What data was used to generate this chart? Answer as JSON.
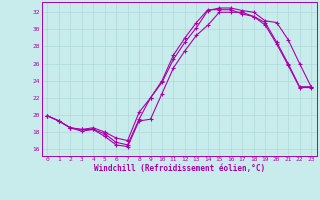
{
  "xlabel": "Windchill (Refroidissement éolien,°C)",
  "bg_color": "#c8ecec",
  "grid_color": "#b0d8d8",
  "line_color": "#aa00aa",
  "yticks": [
    16,
    18,
    20,
    22,
    24,
    26,
    28,
    30,
    32
  ],
  "xticks": [
    0,
    1,
    2,
    3,
    4,
    5,
    6,
    7,
    8,
    9,
    10,
    11,
    12,
    13,
    14,
    15,
    16,
    17,
    18,
    19,
    20,
    21,
    22,
    23
  ],
  "line1_y": [
    19.9,
    19.3,
    18.5,
    18.1,
    18.3,
    17.5,
    16.5,
    16.3,
    19.3,
    19.5,
    22.5,
    25.5,
    27.5,
    29.3,
    30.5,
    32.0,
    32.0,
    32.0,
    31.5,
    30.5,
    28.3,
    25.8,
    23.2,
    23.2
  ],
  "line2_y": [
    19.9,
    19.3,
    18.5,
    18.3,
    18.5,
    18.0,
    17.3,
    17.0,
    20.3,
    22.0,
    23.8,
    26.5,
    28.5,
    30.2,
    32.2,
    32.5,
    32.5,
    32.2,
    32.0,
    31.0,
    30.8,
    28.8,
    26.0,
    23.3
  ],
  "line3_y": [
    19.9,
    19.3,
    18.5,
    18.3,
    18.3,
    17.8,
    16.8,
    16.5,
    19.5,
    22.0,
    24.0,
    27.0,
    29.0,
    30.8,
    32.3,
    32.3,
    32.3,
    31.8,
    31.5,
    30.8,
    28.5,
    26.0,
    23.3,
    23.3
  ]
}
